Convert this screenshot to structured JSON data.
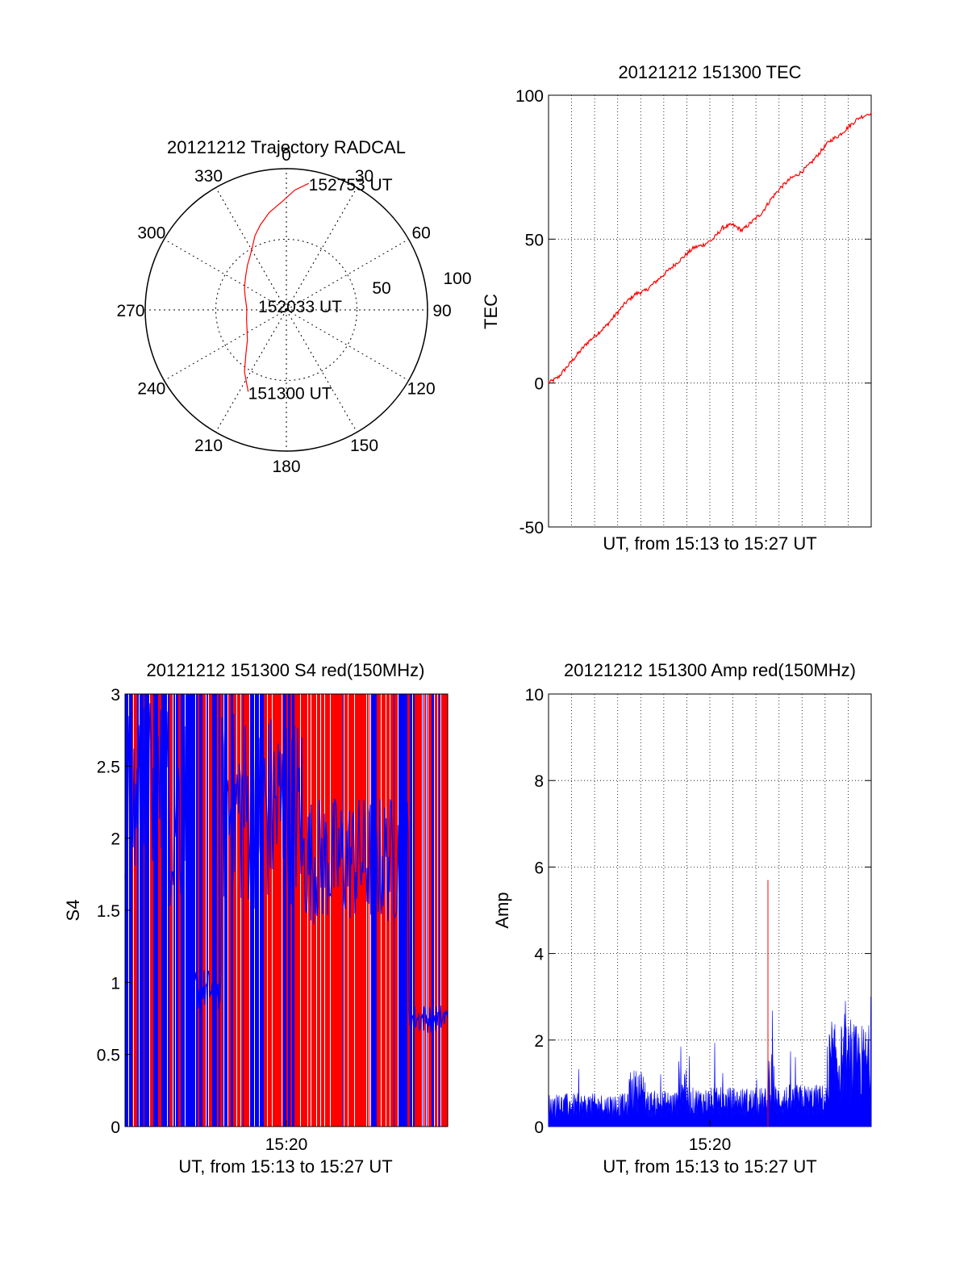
{
  "chart_data": [
    {
      "type": "polar",
      "title": "20121212 Trajectory RADCAL",
      "angle_labels": [
        "0",
        "30",
        "60",
        "90",
        "120",
        "150",
        "180",
        "210",
        "240",
        "270",
        "300",
        "330"
      ],
      "radial_labels": [
        "50",
        "100"
      ],
      "rlim": [
        0,
        100
      ],
      "grid": true,
      "series": [
        {
          "color": "#ff0000",
          "azimuth_deg": [
            10,
            4,
            358,
            350,
            343,
            337,
            332,
            326,
            319,
            311,
            303,
            296,
            285,
            271,
            257,
            244,
            232,
            223,
            214,
            205
          ],
          "radius": [
            91,
            85,
            77,
            70,
            63,
            57,
            51,
            46,
            42,
            38,
            35,
            33,
            30,
            28,
            29,
            31,
            35,
            42,
            53,
            64
          ]
        }
      ],
      "annotations": [
        {
          "text": "152753 UT",
          "az": 10,
          "r": 91
        },
        {
          "text": "152033 UT",
          "az": 0,
          "r": 0
        },
        {
          "text": "151300 UT",
          "az": 205,
          "r": 64
        }
      ]
    },
    {
      "type": "line",
      "title": "20121212 151300 TEC",
      "xlabel": "UT, from 15:13 to 15:27 UT",
      "ylabel": "TEC",
      "xlim": [
        0,
        1
      ],
      "ylim": [
        -50,
        100
      ],
      "yticks": [
        "-50",
        "0",
        "50",
        "100"
      ],
      "grid": true,
      "series": [
        {
          "color": "#ff0000",
          "x": [
            0,
            0.03,
            0.06,
            0.09,
            0.12,
            0.15,
            0.18,
            0.21,
            0.24,
            0.27,
            0.3,
            0.33,
            0.36,
            0.39,
            0.42,
            0.45,
            0.48,
            0.51,
            0.54,
            0.57,
            0.6,
            0.63,
            0.66,
            0.69,
            0.72,
            0.75,
            0.78,
            0.81,
            0.84,
            0.87,
            0.9,
            0.93,
            0.96,
            1.0
          ],
          "y": [
            0,
            2,
            6,
            10,
            14,
            17,
            20,
            24,
            28,
            31,
            32,
            35,
            38,
            41,
            44,
            47,
            48,
            50,
            54,
            55,
            53,
            56,
            59,
            64,
            68,
            71,
            73,
            76,
            80,
            84,
            86,
            89,
            92,
            94
          ]
        }
      ]
    },
    {
      "type": "bar",
      "title": "20121212 151300 S4 red(150MHz)",
      "xlabel": "UT, from 15:13 to 15:27 UT",
      "ylabel": "S4",
      "xlim": [
        "15:13",
        "15:27"
      ],
      "xticks": [
        "15:20"
      ],
      "ylim": [
        0,
        3
      ],
      "yticks": [
        "0",
        "0.5",
        "1",
        "1.5",
        "2",
        "2.5",
        "3"
      ],
      "grid": false,
      "series": [
        {
          "name": "",
          "color": "#ff0000",
          "values_note": ""
        },
        {
          "name": "",
          "color": "#0000ff"
        }
      ]
    },
    {
      "type": "line",
      "title": "20121212 151300 Amp red(150MHz)",
      "xlabel": "UT, from 15:13 to 15:27 UT",
      "ylabel": "Amp",
      "xlim": [
        "15:13",
        "15:27"
      ],
      "xticks": [
        "15:20"
      ],
      "ylim": [
        0,
        10
      ],
      "yticks": [
        "0",
        "2",
        "4",
        "6",
        "8",
        "10"
      ],
      "grid": true,
      "series": [
        {
          "color": "#0000ff",
          "segments": [
            {
              "x": [
                0.0,
                0.25
              ],
              "base": 0.55
            },
            {
              "x": [
                0.25,
                0.3
              ],
              "base": 0.95
            },
            {
              "x": [
                0.3,
                0.4
              ],
              "base": 0.6
            },
            {
              "x": [
                0.4,
                0.43
              ],
              "base": 1.1
            },
            {
              "x": [
                0.43,
                0.68
              ],
              "base": 0.65
            },
            {
              "x": [
                0.68,
                0.7
              ],
              "base": 1.3
            },
            {
              "x": [
                0.7,
                0.87
              ],
              "base": 0.7
            },
            {
              "x": [
                0.87,
                1.0
              ],
              "base": 1.7
            }
          ]
        },
        {
          "color": "#ff0000",
          "spikes": [
            {
              "x": 0.68,
              "y": 5.7
            }
          ]
        }
      ]
    }
  ]
}
